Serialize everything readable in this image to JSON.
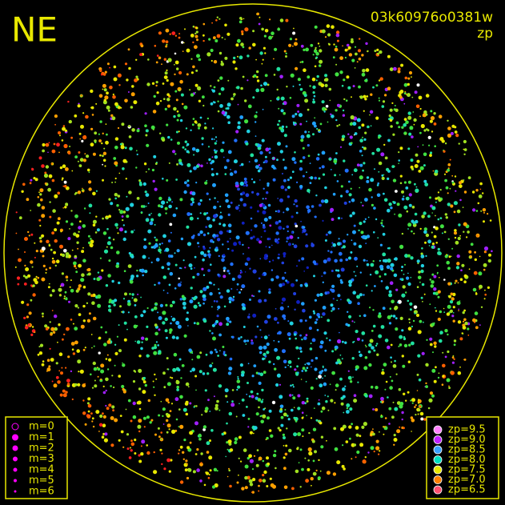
{
  "header": {
    "title": "NE",
    "id": "03k60976o0381w",
    "subtitle": "zp"
  },
  "legend_m": {
    "items": [
      {
        "label": "m=0",
        "size": 4
      },
      {
        "label": "m=1",
        "size": 3.5
      },
      {
        "label": "m=2",
        "size": 3
      },
      {
        "label": "m=3",
        "size": 2.5
      },
      {
        "label": "m=4",
        "size": 2
      },
      {
        "label": "m=5",
        "size": 1.5
      },
      {
        "label": "m=6",
        "size": 1
      }
    ],
    "color": "#ff00ff"
  },
  "legend_zp": {
    "items": [
      {
        "label": "zp=9.5",
        "color": "#ff80ff"
      },
      {
        "label": "zp=9.0",
        "color": "#c020ff"
      },
      {
        "label": "zp=8.5",
        "color": "#3aa0ff"
      },
      {
        "label": "zp=8.0",
        "color": "#00e0c0"
      },
      {
        "label": "zp=7.5",
        "color": "#e8e800"
      },
      {
        "label": "zp=7.0",
        "color": "#ff8000"
      },
      {
        "label": "zp=6.5",
        "color": "#ff5070"
      }
    ]
  }
}
